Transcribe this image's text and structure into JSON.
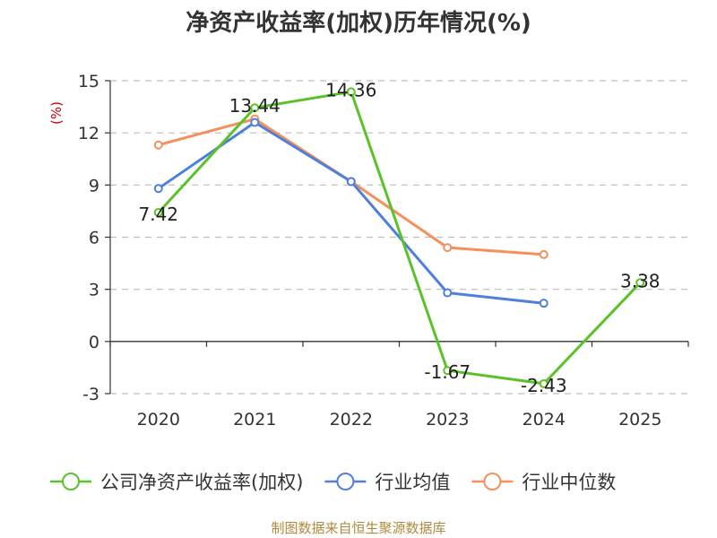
{
  "chart_data": {
    "type": "line",
    "title": "净资产收益率(加权)历年情况(%)",
    "ylabel": "(%)",
    "categories": [
      "2020",
      "2021",
      "2022",
      "2023",
      "2024",
      "2025"
    ],
    "ylim": [
      -3,
      15
    ],
    "yticks": [
      -3,
      0,
      3,
      6,
      9,
      12,
      15
    ],
    "grid": true,
    "legend_position": "bottom",
    "series": [
      {
        "name": "公司净资产收益率(加权)",
        "color": "#5ac229",
        "values": [
          7.42,
          13.44,
          14.36,
          -1.67,
          -2.43,
          3.38
        ],
        "labels": [
          "7.42",
          "13.44",
          "14.36",
          "-1.67",
          "-2.43",
          "3.38"
        ]
      },
      {
        "name": "行业均值",
        "color": "#4f7fdc",
        "values": [
          8.8,
          12.6,
          9.2,
          2.8,
          2.2,
          null
        ]
      },
      {
        "name": "行业中位数",
        "color": "#f58f5b",
        "values": [
          11.3,
          12.8,
          9.2,
          5.4,
          5.0,
          null
        ]
      }
    ],
    "source": "制图数据来自恒生聚源数据库"
  }
}
